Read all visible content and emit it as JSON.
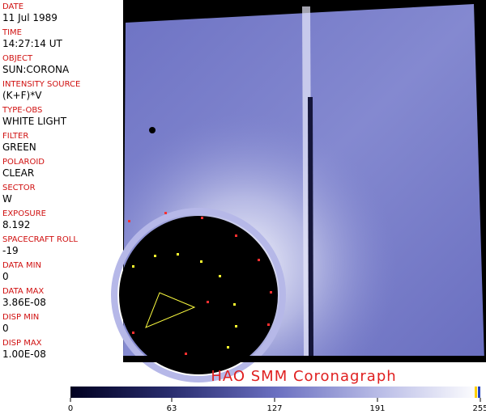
{
  "fields": [
    {
      "label": "DATE",
      "value": "11 Jul 1989"
    },
    {
      "label": "TIME",
      "value": "14:27:14 UT"
    },
    {
      "label": "OBJECT",
      "value": "SUN:CORONA"
    },
    {
      "label": "INTENSITY SOURCE",
      "value": "(K+F)*V"
    },
    {
      "label": "TYPE-OBS",
      "value": "WHITE LIGHT"
    },
    {
      "label": "FILTER",
      "value": "GREEN"
    },
    {
      "label": "POLAROID",
      "value": "CLEAR"
    },
    {
      "label": "SECTOR",
      "value": "W"
    },
    {
      "label": "EXPOSURE",
      "value": "8.192"
    },
    {
      "label": "SPACECRAFT ROLL",
      "value": "-19"
    },
    {
      "label": "DATA MIN",
      "value": "0"
    },
    {
      "label": "DATA MAX",
      "value": "3.86E-08"
    },
    {
      "label": "DISP MIN",
      "value": "0"
    },
    {
      "label": "DISP MAX",
      "value": "1.00E-08"
    }
  ],
  "title": "HAO  SMM Coronagraph",
  "colorbar": {
    "xlim": [
      0,
      255
    ],
    "xticks": [
      0,
      63,
      127,
      191,
      255
    ]
  }
}
